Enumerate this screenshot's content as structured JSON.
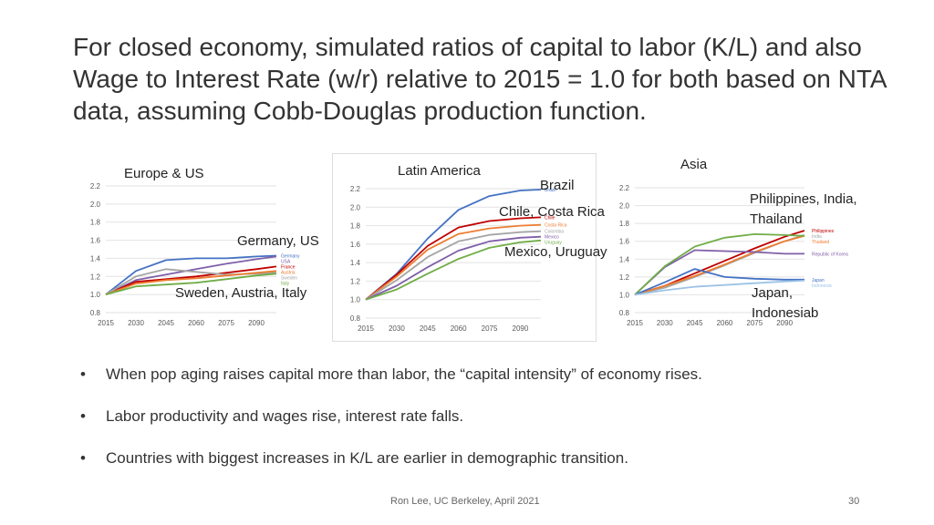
{
  "slide": {
    "title": "For closed economy, simulated ratios of capital to labor (K/L) and also Wage to Interest Rate (w/r) relative to 2015 = 1.0 for both based on NTA data, assuming Cobb-Douglas production function.",
    "bullets": [
      "When pop aging raises capital more than labor, the “capital intensity” of economy rises.",
      "Labor productivity and wages rise, interest rate falls.",
      "Countries with biggest increases in K/L are earlier in demographic transition."
    ],
    "bullet_symbol": "•",
    "footer_text": "Ron Lee, UC Berkeley, April 2021",
    "page_number": "30"
  },
  "chart_data": [
    {
      "type": "line",
      "panel": "europe-us",
      "title": "Europe & US",
      "xlabel": "",
      "ylabel": "",
      "x": [
        2015,
        2030,
        2045,
        2060,
        2075,
        2090,
        2100
      ],
      "xticks": [
        "2015",
        "2030",
        "2045",
        "2060",
        "2075",
        "2090"
      ],
      "yticks": [
        "0.8",
        "1.0",
        "1.2",
        "1.4",
        "1.6",
        "1.8",
        "2.0",
        "2.2"
      ],
      "ylim": [
        0.8,
        2.2
      ],
      "grid": true,
      "legend_position": "right",
      "series": [
        {
          "name": "Germany",
          "color": "#4472C4",
          "values": [
            1.0,
            1.26,
            1.38,
            1.4,
            1.4,
            1.42,
            1.43
          ]
        },
        {
          "name": "USA",
          "color": "#7F5FA8",
          "values": [
            1.0,
            1.16,
            1.22,
            1.28,
            1.34,
            1.39,
            1.42
          ]
        },
        {
          "name": "France",
          "color": "#C00000",
          "values": [
            1.0,
            1.14,
            1.17,
            1.2,
            1.24,
            1.28,
            1.31
          ]
        },
        {
          "name": "Sweden",
          "color": "#A5A5A5",
          "values": [
            1.0,
            1.2,
            1.28,
            1.25,
            1.22,
            1.23,
            1.24
          ]
        },
        {
          "name": "Austria",
          "color": "#ED7D31",
          "values": [
            1.0,
            1.12,
            1.16,
            1.18,
            1.21,
            1.24,
            1.26
          ]
        },
        {
          "name": "Italy",
          "color": "#70AD47",
          "values": [
            1.0,
            1.09,
            1.11,
            1.13,
            1.17,
            1.21,
            1.23
          ]
        }
      ],
      "annotations": [
        "Germany, US",
        "Sweden, Austria, Italy"
      ]
    },
    {
      "type": "line",
      "panel": "latin-america",
      "title": "Latin America",
      "xlabel": "",
      "ylabel": "",
      "x": [
        2015,
        2030,
        2045,
        2060,
        2075,
        2090,
        2100
      ],
      "xticks": [
        "2015",
        "2030",
        "2045",
        "2060",
        "2075",
        "2090"
      ],
      "yticks": [
        "0.8",
        "1.0",
        "1.2",
        "1.4",
        "1.6",
        "1.8",
        "2.0",
        "2.2"
      ],
      "ylim": [
        0.8,
        2.2
      ],
      "grid": true,
      "legend_position": "right",
      "series": [
        {
          "name": "Brazil",
          "color": "#4472C4",
          "values": [
            1.0,
            1.28,
            1.66,
            1.97,
            2.12,
            2.18,
            2.19
          ]
        },
        {
          "name": "Chile",
          "color": "#C00000",
          "values": [
            1.0,
            1.27,
            1.58,
            1.78,
            1.85,
            1.88,
            1.89
          ]
        },
        {
          "name": "Costa Rica",
          "color": "#ED7D31",
          "values": [
            1.0,
            1.25,
            1.54,
            1.71,
            1.77,
            1.8,
            1.81
          ]
        },
        {
          "name": "Colombia",
          "color": "#A5A5A5",
          "values": [
            1.0,
            1.21,
            1.46,
            1.63,
            1.7,
            1.73,
            1.74
          ]
        },
        {
          "name": "Mexico",
          "color": "#7F5FA8",
          "values": [
            1.0,
            1.15,
            1.35,
            1.53,
            1.63,
            1.67,
            1.68
          ]
        },
        {
          "name": "Uruguay",
          "color": "#70AD47",
          "values": [
            1.0,
            1.11,
            1.28,
            1.44,
            1.56,
            1.62,
            1.64
          ]
        }
      ],
      "annotations": [
        "Brazil",
        "Chile, Costa Rica",
        "Mexico, Uruguay"
      ]
    },
    {
      "type": "line",
      "panel": "asia",
      "title": "Asia",
      "xlabel": "",
      "ylabel": "",
      "x": [
        2015,
        2030,
        2045,
        2060,
        2075,
        2090,
        2100
      ],
      "xticks": [
        "2015",
        "2030",
        "2045",
        "2060",
        "2075",
        "2090"
      ],
      "yticks": [
        "0.8",
        "1.0",
        "1.2",
        "1.4",
        "1.6",
        "1.8",
        "2.0",
        "2.2"
      ],
      "ylim": [
        0.8,
        2.2
      ],
      "grid": true,
      "legend_position": "right",
      "series": [
        {
          "name": "Philippines",
          "color": "#C00000",
          "values": [
            1.0,
            1.1,
            1.24,
            1.38,
            1.52,
            1.65,
            1.72
          ]
        },
        {
          "name": "India",
          "color": "#A5A5A5",
          "values": [
            1.0,
            1.08,
            1.2,
            1.33,
            1.47,
            1.6,
            1.67
          ]
        },
        {
          "name": "Thailand",
          "color": "#ED7D31",
          "values": [
            1.0,
            1.1,
            1.21,
            1.34,
            1.48,
            1.6,
            1.66
          ]
        },
        {
          "name": "Republic of Korea",
          "color": "#7F5FA8",
          "values": [
            1.0,
            1.31,
            1.5,
            1.49,
            1.48,
            1.46,
            1.46
          ]
        },
        {
          "name": "",
          "color": "#70AD47",
          "values": [
            1.0,
            1.32,
            1.54,
            1.64,
            1.68,
            1.67,
            1.66
          ]
        },
        {
          "name": "Japan",
          "color": "#4472C4",
          "values": [
            1.0,
            1.14,
            1.29,
            1.2,
            1.18,
            1.17,
            1.17
          ]
        },
        {
          "name": "Indonesia",
          "color": "#9DC3E6",
          "values": [
            1.0,
            1.05,
            1.09,
            1.11,
            1.13,
            1.15,
            1.16
          ]
        }
      ],
      "annotations": [
        "Philippines, India, Thailand",
        "Japan, Indonesiab"
      ]
    }
  ]
}
